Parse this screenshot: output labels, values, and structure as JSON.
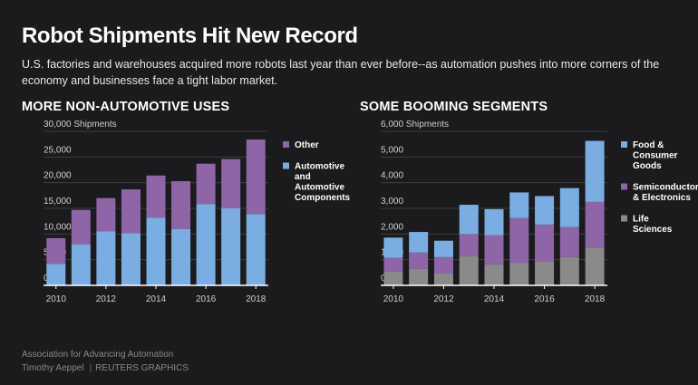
{
  "title": "Robot Shipments Hit New Record",
  "subtitle": "U.S. factories and warehouses acquired more robots last year than ever before--as automation pushes into more corners of the economy and businesses face a tight labor market.",
  "colors": {
    "blue": "#7aaee3",
    "purple": "#8e66a8",
    "gray": "#8a8a8a",
    "axis": "#ffffff",
    "grid": "#3e3d40",
    "tick": "#d0d0d0"
  },
  "source": {
    "org": "Association for Advancing Automation",
    "author": "Timothy Aeppel",
    "publisher": "REUTERS GRAPHICS"
  },
  "chart_data": [
    {
      "type": "bar",
      "stacked": true,
      "title": "MORE NON-AUTOMOTIVE USES",
      "ylabel": "Shipments",
      "ylim": [
        0,
        30000
      ],
      "yticks": [
        0,
        5000,
        10000,
        15000,
        20000,
        25000,
        30000
      ],
      "ytick_labels": [
        "0",
        "5,000",
        "10,000",
        "15,000",
        "20,000",
        "25,000",
        "30,000 Shipments"
      ],
      "categories": [
        2010,
        2011,
        2012,
        2013,
        2014,
        2015,
        2016,
        2017,
        2018
      ],
      "xtick_labels": [
        "2010",
        "",
        "2012",
        "",
        "2014",
        "",
        "2016",
        "",
        "2018"
      ],
      "series": [
        {
          "name": "Automotive and Automotive Components",
          "legend_lines": [
            "Automotive",
            "and",
            "Automotive",
            "Components"
          ],
          "color": "#7aaee3",
          "values": [
            4200,
            8000,
            10500,
            10200,
            13200,
            11000,
            15800,
            15000,
            13900
          ]
        },
        {
          "name": "Other",
          "legend_lines": [
            "Other"
          ],
          "color": "#8e66a8",
          "values": [
            5000,
            6700,
            6500,
            8500,
            8200,
            9300,
            7900,
            9600,
            14500
          ]
        }
      ],
      "legend_order": [
        1,
        0
      ]
    },
    {
      "type": "bar",
      "stacked": true,
      "title": "SOME BOOMING SEGMENTS",
      "ylabel": "Shipments",
      "ylim": [
        0,
        6000
      ],
      "yticks": [
        0,
        1000,
        2000,
        3000,
        4000,
        5000,
        6000
      ],
      "ytick_labels": [
        "0",
        "1,000",
        "2,000",
        "3,000",
        "4,000",
        "5,000",
        "6,000 Shipments"
      ],
      "categories": [
        2010,
        2011,
        2012,
        2013,
        2014,
        2015,
        2016,
        2017,
        2018
      ],
      "xtick_labels": [
        "2010",
        "",
        "2012",
        "",
        "2014",
        "",
        "2016",
        "",
        "2018"
      ],
      "series": [
        {
          "name": "Life Sciences",
          "legend_lines": [
            "Life",
            "Sciences"
          ],
          "color": "#8a8a8a",
          "values": [
            540,
            640,
            460,
            1140,
            820,
            880,
            940,
            1100,
            1460
          ]
        },
        {
          "name": "Semiconductor & Electronics",
          "legend_lines": [
            "Semiconductor",
            "& Electronics"
          ],
          "color": "#8e66a8",
          "values": [
            530,
            640,
            640,
            860,
            1140,
            1740,
            1430,
            1170,
            1790
          ]
        },
        {
          "name": "Food & Consumer Goods",
          "legend_lines": [
            "Food &",
            "Consumer",
            "Goods"
          ],
          "color": "#7aaee3",
          "values": [
            790,
            800,
            640,
            1140,
            1010,
            1000,
            1110,
            1520,
            2380
          ]
        }
      ],
      "legend_order": [
        2,
        1,
        0
      ]
    }
  ]
}
